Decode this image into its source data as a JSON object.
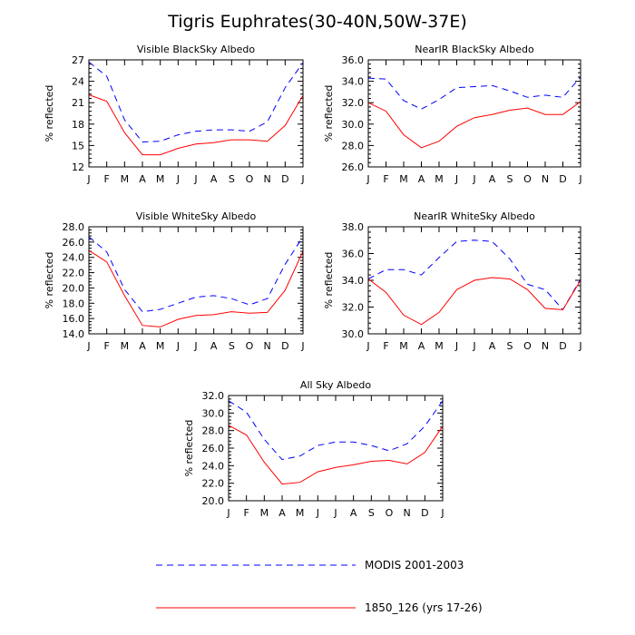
{
  "title": "Tigris Euphrates(30-40N,50W-37E)",
  "legend": {
    "placement": "bottom",
    "entries": [
      {
        "label": "MODIS 2001-2003",
        "color": "#0000ff",
        "dash": "dashed"
      },
      {
        "label": "1850_126 (yrs 17-26)",
        "color": "#ff0000",
        "dash": "solid"
      }
    ]
  },
  "chart_data": [
    {
      "type": "line",
      "title": "Visible BlackSky Albedo",
      "ylabel": "% reflected",
      "categories": [
        "J",
        "F",
        "M",
        "A",
        "M",
        "J",
        "J",
        "A",
        "S",
        "O",
        "N",
        "D",
        "J"
      ],
      "ylim": [
        12,
        27
      ],
      "yticks": [
        12,
        15,
        18,
        21,
        24,
        27
      ],
      "ytick_labels": [
        "12",
        "15",
        "18",
        "21",
        "24",
        "27"
      ],
      "series": [
        {
          "name": "MODIS 2001-2003",
          "values": [
            26.7,
            24.7,
            18.6,
            15.5,
            15.6,
            16.5,
            17.0,
            17.2,
            17.2,
            17.0,
            18.3,
            23.1,
            26.6
          ]
        },
        {
          "name": "1850_126 (yrs 17-26)",
          "values": [
            22.1,
            21.2,
            16.8,
            13.7,
            13.7,
            14.6,
            15.2,
            15.4,
            15.8,
            15.8,
            15.6,
            17.8,
            22.0
          ]
        }
      ]
    },
    {
      "type": "line",
      "title": "NearIR BlackSky Albedo",
      "ylabel": "% reflected",
      "categories": [
        "J",
        "F",
        "M",
        "A",
        "M",
        "J",
        "J",
        "A",
        "S",
        "O",
        "N",
        "D",
        "J"
      ],
      "ylim": [
        26,
        36
      ],
      "yticks": [
        26,
        28,
        30,
        32,
        34,
        36
      ],
      "ytick_labels": [
        "26.0",
        "28.0",
        "30.0",
        "32.0",
        "34.0",
        "36.0"
      ],
      "series": [
        {
          "name": "MODIS 2001-2003",
          "values": [
            34.3,
            34.2,
            32.2,
            31.4,
            32.3,
            33.4,
            33.5,
            33.6,
            33.1,
            32.5,
            32.7,
            32.5,
            34.4
          ]
        },
        {
          "name": "1850_126 (yrs 17-26)",
          "values": [
            32.0,
            31.2,
            29.0,
            27.8,
            28.4,
            29.8,
            30.6,
            30.9,
            31.3,
            31.5,
            30.9,
            30.9,
            32.1
          ]
        }
      ]
    },
    {
      "type": "line",
      "title": "Visible WhiteSky Albedo",
      "ylabel": "% reflected",
      "categories": [
        "J",
        "F",
        "M",
        "A",
        "M",
        "J",
        "J",
        "A",
        "S",
        "O",
        "N",
        "D",
        "J"
      ],
      "ylim": [
        14,
        28
      ],
      "yticks": [
        14,
        16,
        18,
        20,
        22,
        24,
        26,
        28
      ],
      "ytick_labels": [
        "14.0",
        "16.0",
        "18.0",
        "20.0",
        "22.0",
        "24.0",
        "26.0",
        "28.0"
      ],
      "series": [
        {
          "name": "MODIS 2001-2003",
          "values": [
            26.7,
            24.7,
            19.8,
            16.9,
            17.2,
            18.0,
            18.8,
            19.0,
            18.6,
            17.8,
            18.6,
            23.1,
            26.7
          ]
        },
        {
          "name": "1850_126 (yrs 17-26)",
          "values": [
            24.9,
            23.4,
            19.0,
            15.1,
            14.9,
            15.9,
            16.4,
            16.5,
            16.9,
            16.7,
            16.8,
            19.7,
            24.8
          ]
        }
      ]
    },
    {
      "type": "line",
      "title": "NearIR WhiteSky Albedo",
      "ylabel": "% reflected",
      "categories": [
        "J",
        "F",
        "M",
        "A",
        "M",
        "J",
        "J",
        "A",
        "S",
        "O",
        "N",
        "D",
        "J"
      ],
      "ylim": [
        30,
        38
      ],
      "yticks": [
        30,
        32,
        34,
        36,
        38
      ],
      "ytick_labels": [
        "30.0",
        "32.0",
        "34.0",
        "36.0",
        "38.0"
      ],
      "series": [
        {
          "name": "MODIS 2001-2003",
          "values": [
            34.1,
            34.8,
            34.8,
            34.4,
            35.7,
            36.9,
            37.0,
            36.9,
            35.6,
            33.7,
            33.3,
            31.8,
            34.1
          ]
        },
        {
          "name": "1850_126 (yrs 17-26)",
          "values": [
            34.1,
            33.1,
            31.4,
            30.7,
            31.6,
            33.3,
            34.0,
            34.2,
            34.1,
            33.3,
            31.9,
            31.8,
            34.0
          ]
        }
      ]
    },
    {
      "type": "line",
      "title": "All Sky Albedo",
      "ylabel": "% reflected",
      "categories": [
        "J",
        "F",
        "M",
        "A",
        "M",
        "J",
        "J",
        "A",
        "S",
        "O",
        "N",
        "D",
        "J"
      ],
      "ylim": [
        20,
        32
      ],
      "yticks": [
        20,
        22,
        24,
        26,
        28,
        30,
        32
      ],
      "ytick_labels": [
        "20.0",
        "22.0",
        "24.0",
        "26.0",
        "28.0",
        "30.0",
        "32.0"
      ],
      "series": [
        {
          "name": "MODIS 2001-2003",
          "values": [
            31.4,
            30.1,
            27.0,
            24.7,
            25.1,
            26.3,
            26.7,
            26.7,
            26.3,
            25.7,
            26.5,
            28.5,
            31.4
          ]
        },
        {
          "name": "1850_126 (yrs 17-26)",
          "values": [
            28.6,
            27.5,
            24.4,
            21.9,
            22.1,
            23.3,
            23.8,
            24.1,
            24.5,
            24.6,
            24.2,
            25.5,
            28.5
          ]
        }
      ]
    }
  ]
}
